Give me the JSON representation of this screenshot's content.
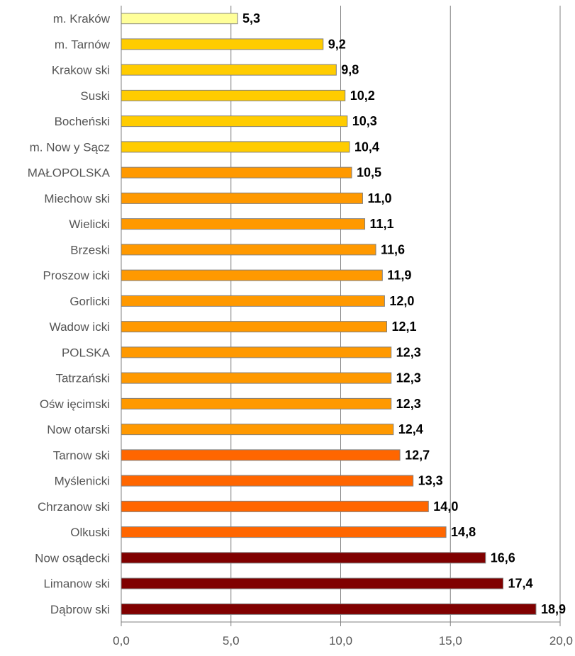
{
  "chart_data": {
    "type": "bar",
    "orientation": "horizontal",
    "title": "",
    "xlabel": "",
    "ylabel": "",
    "xlim": [
      0,
      20
    ],
    "ticks": [
      "0,0",
      "5,0",
      "10,0",
      "15,0",
      "20,0"
    ],
    "tick_values": [
      0,
      5,
      10,
      15,
      20
    ],
    "grid": true,
    "legend": "none",
    "categories": [
      "m. Kraków",
      "m. Tarnów",
      "Krakow ski",
      "Suski",
      "Bocheński",
      "m. Now y Sącz",
      "MAŁOPOLSKA",
      "Miechow ski",
      "Wielicki",
      "Brzeski",
      "Proszow icki",
      "Gorlicki",
      "Wadow icki",
      "POLSKA",
      "Tatrzański",
      "Ośw ięcimski",
      "Now otarski",
      "Tarnow ski",
      "Myślenicki",
      "Chrzanow ski",
      "Olkuski",
      "Now osądecki",
      "Limanow ski",
      "Dąbrow ski"
    ],
    "values": [
      5.3,
      9.2,
      9.8,
      10.2,
      10.3,
      10.4,
      10.5,
      11.0,
      11.1,
      11.6,
      11.9,
      12.0,
      12.1,
      12.3,
      12.3,
      12.3,
      12.4,
      12.7,
      13.3,
      14.0,
      14.8,
      16.6,
      17.4,
      18.9
    ],
    "value_labels": [
      "5,3",
      "9,2",
      "9,8",
      "10,2",
      "10,3",
      "10,4",
      "10,5",
      "11,0",
      "11,1",
      "11,6",
      "11,9",
      "12,0",
      "12,1",
      "12,3",
      "12,3",
      "12,3",
      "12,4",
      "12,7",
      "13,3",
      "14,0",
      "14,8",
      "16,6",
      "17,4",
      "18,9"
    ],
    "bar_colors": [
      "#ffff99",
      "#ffcc00",
      "#ffcc00",
      "#ffcc00",
      "#ffcc00",
      "#ffcc00",
      "#ff9900",
      "#ff9900",
      "#ff9900",
      "#ff9900",
      "#ff9900",
      "#ff9900",
      "#ff9900",
      "#ff9900",
      "#ff9900",
      "#ff9900",
      "#ff9900",
      "#ff6600",
      "#ff6600",
      "#ff6600",
      "#ff6600",
      "#800000",
      "#800000",
      "#800000"
    ],
    "grid_color": "#808080",
    "axis_color": "#808080",
    "bar_border_color": "#808080"
  }
}
